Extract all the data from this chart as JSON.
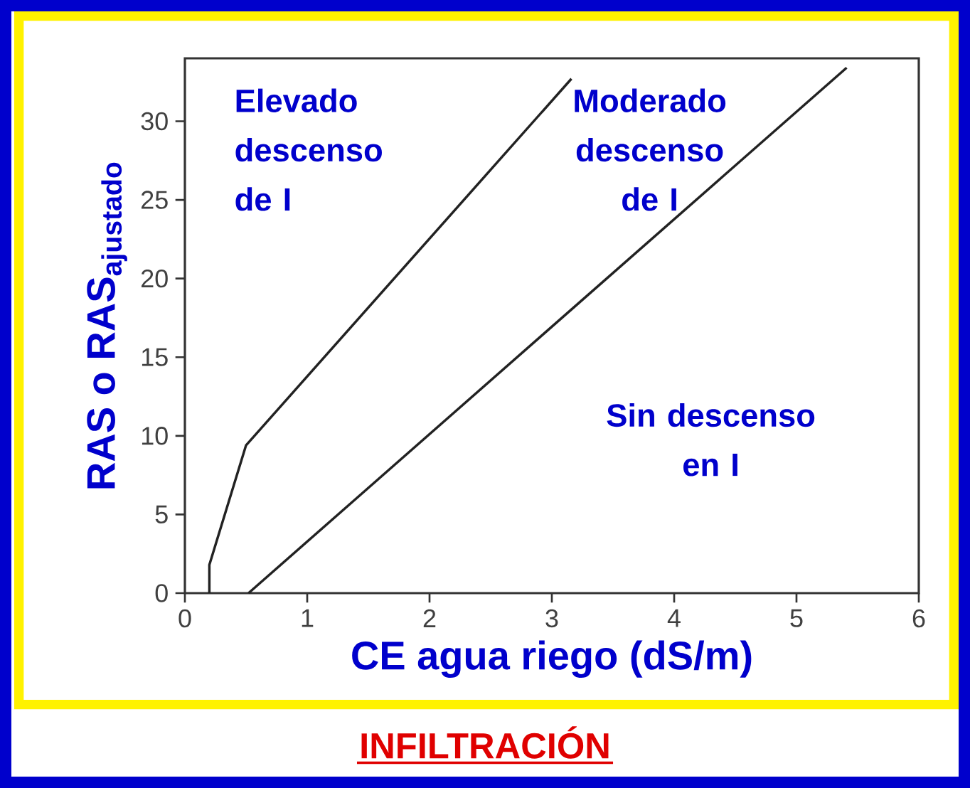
{
  "chart_data": {
    "type": "line",
    "title": "INFILTRACIÓN",
    "xlabel": "CE agua riego (dS/m)",
    "ylabel": "RAS o RAS$_{ajustado}$",
    "series": [
      {
        "x": [
          0.2,
          0.2,
          0.5,
          3.16
        ],
        "values": [
          0,
          1.8,
          9.4,
          32.7
        ],
        "color": "#222222"
      },
      {
        "x": [
          0.52,
          5.41
        ],
        "values": [
          0,
          33.4
        ],
        "color": "#222222"
      }
    ],
    "xlim": [
      0,
      6
    ],
    "ylim": [
      0,
      34
    ],
    "xticks": [
      0,
      1,
      2,
      3,
      4,
      5,
      6
    ],
    "yticks": [
      0,
      5,
      10,
      15,
      20,
      25,
      30
    ],
    "grid": false,
    "marker": "none",
    "line_style": "solid",
    "annotations": [
      "Elevado descenso de I",
      "Moderado descenso de I",
      "Sin descenso en I"
    ]
  }
}
